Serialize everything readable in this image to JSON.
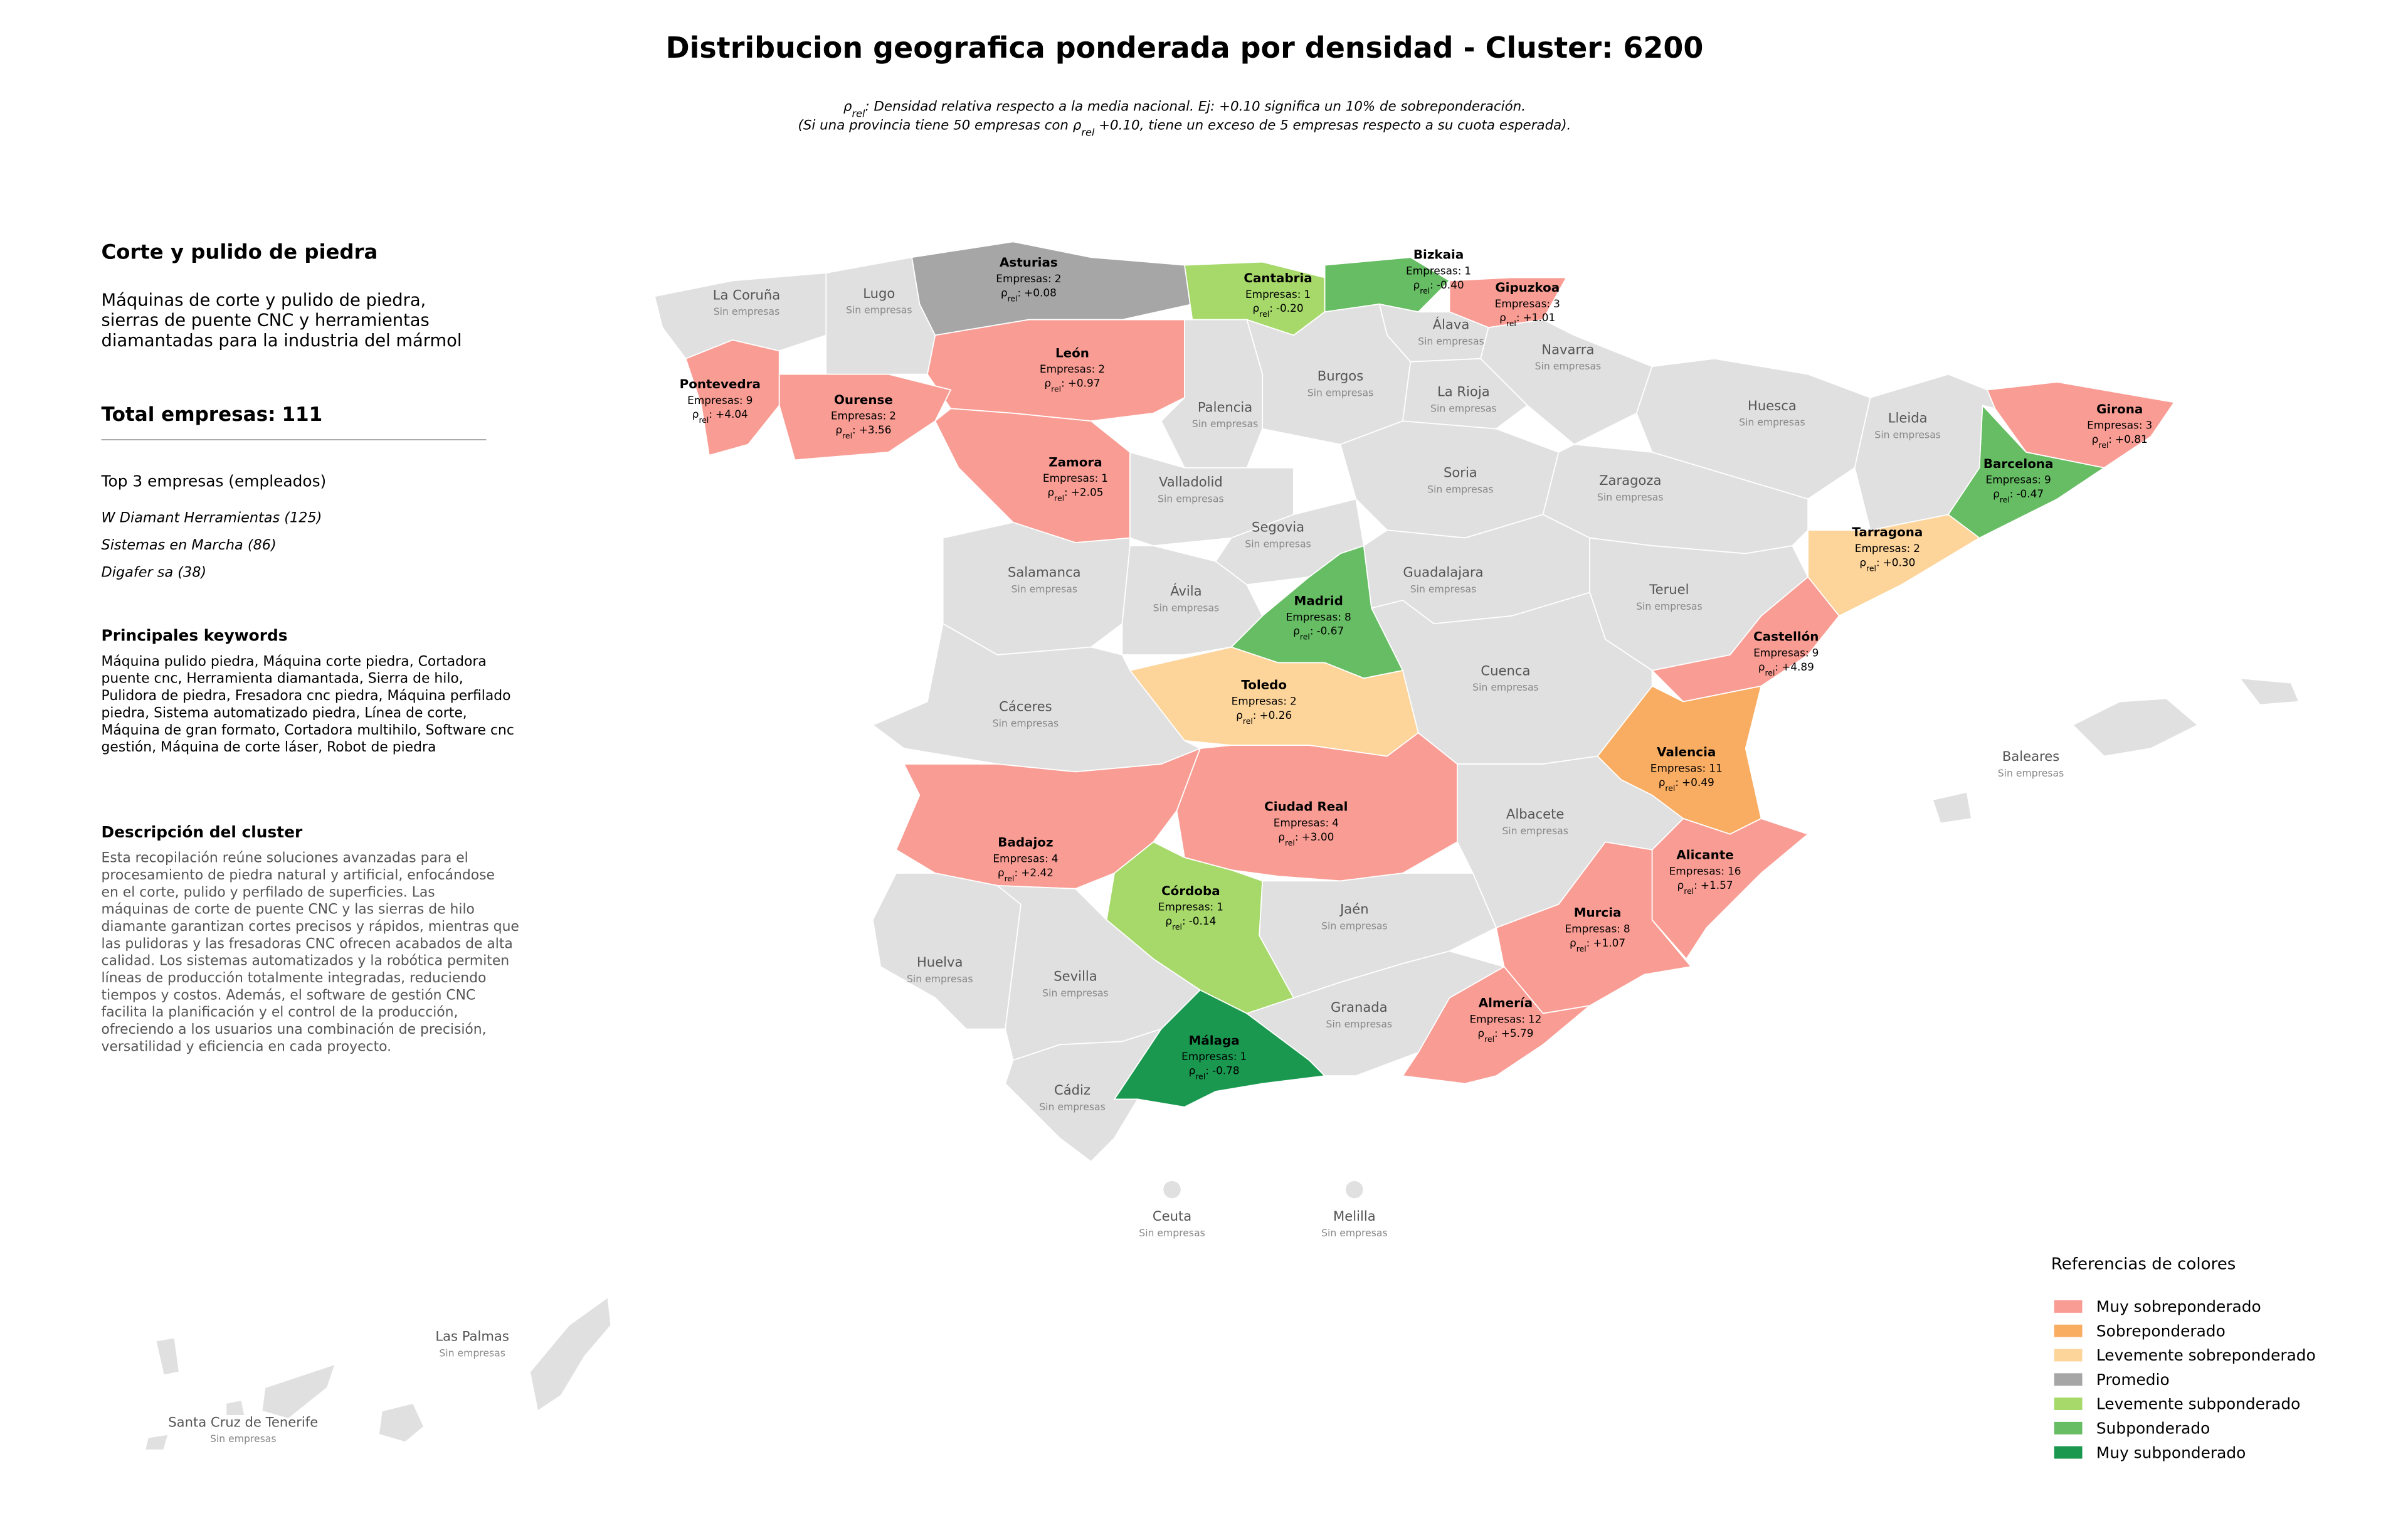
{
  "title": "Distribucion geografica ponderada por densidad - Cluster: 6200",
  "subtitle": [
    [
      "ρ",
      "rel",
      ": Densidad relativa respecto a la media nacional. Ej: +0.10 significa un 10% de sobreponderación."
    ],
    [
      "(Si una provincia tiene 50 empresas con ρ",
      "rel",
      " +0.10, tiene un exceso de 5 empresas respecto a su cuota esperada)."
    ]
  ],
  "sidebar": {
    "heading": "Corte y pulido de piedra",
    "description": [
      "Máquinas de corte y pulido de piedra,",
      "sierras de puente CNC y herramientas",
      "diamantadas para la industria del mármol"
    ],
    "total": {
      "label": "Total empresas:",
      "value": 111
    },
    "top_title": "Top 3 empresas (empleados)",
    "top_companies": [
      "W Diamant Herramientas (125)",
      "Sistemas en Marcha (86)",
      "Digafer sa (38)"
    ],
    "keywords_title": "Principales keywords",
    "keywords": [
      "Máquina pulido piedra, Máquina corte piedra, Cortadora",
      "puente cnc, Herramienta diamantada, Sierra de hilo,",
      "Pulidora de piedra, Fresadora cnc piedra, Máquina perfilado",
      "piedra, Sistema automatizado piedra, Línea de corte,",
      "Máquina de gran formato, Cortadora multihilo, Software cnc",
      "gestión, Máquina de corte láser, Robot de piedra"
    ],
    "cluster_title": "Descripción del cluster",
    "cluster_text": [
      "Esta recopilación reúne soluciones avanzadas para el",
      "procesamiento de piedra natural y artificial, enfocándose",
      "en el corte, pulido y perfilado de superficies. Las",
      "máquinas de corte de puente CNC y las sierras de hilo",
      "diamante garantizan cortes precisos y rápidos, mientras que",
      "las pulidoras y las fresadoras CNC ofrecen acabados de alta",
      "calidad. Los sistemas automatizados y la robótica permiten",
      "líneas de producción totalmente integradas, reduciendo",
      "tiempos y costos. Además, el software de gestión CNC",
      "facilita la planificación y el control de la producción,",
      "ofreciendo a los usuarios una combinación de precisión,",
      "versatilidad y eficiencia en cada proyecto."
    ]
  },
  "labels": {
    "empresas": "Empresas:",
    "rho": [
      "ρ",
      "rel",
      ":"
    ]
  },
  "no_data_color": "#e0e0e0",
  "legend": {
    "title": "Referencias de colores",
    "items": [
      {
        "name": "Muy sobreponderado",
        "color": "#f99d94"
      },
      {
        "name": "Sobreponderado",
        "color": "#f9ad62"
      },
      {
        "name": "Levemente sobreponderado",
        "color": "#fdd49a"
      },
      {
        "name": "Promedio",
        "color": "#a6a6a6"
      },
      {
        "name": "Levemente subponderado",
        "color": "#a6d96a"
      },
      {
        "name": "Subponderado",
        "color": "#66bd63"
      },
      {
        "name": "Muy subponderado",
        "color": "#1a9850"
      }
    ]
  },
  "provinces": [
    {
      "name": "Asturias",
      "empresas": 2,
      "rho": {
        "value": 0.08,
        "label": "+0.08"
      },
      "category": 3
    },
    {
      "name": "Cantabria",
      "empresas": 1,
      "rho": {
        "value": -0.2,
        "label": "-0.20"
      },
      "category": 4
    },
    {
      "name": "Bizkaia",
      "empresas": 1,
      "rho": {
        "value": -0.4,
        "label": "-0.40"
      },
      "category": 5
    },
    {
      "name": "Gipuzkoa",
      "empresas": 3,
      "rho": {
        "value": 1.01,
        "label": "+1.01"
      },
      "category": 0
    },
    {
      "name": "León",
      "empresas": 2,
      "rho": {
        "value": 0.97,
        "label": "+0.97"
      },
      "category": 0
    },
    {
      "name": "Pontevedra",
      "empresas": 9,
      "rho": {
        "value": 4.04,
        "label": "+4.04"
      },
      "category": 0
    },
    {
      "name": "Ourense",
      "empresas": 2,
      "rho": {
        "value": 3.56,
        "label": "+3.56"
      },
      "category": 0
    },
    {
      "name": "Zamora",
      "empresas": 1,
      "rho": {
        "value": 2.05,
        "label": "+2.05"
      },
      "category": 0
    },
    {
      "name": "Girona",
      "empresas": 3,
      "rho": {
        "value": 0.81,
        "label": "+0.81"
      },
      "category": 0
    },
    {
      "name": "Barcelona",
      "empresas": 9,
      "rho": {
        "value": -0.47,
        "label": "-0.47"
      },
      "category": 5
    },
    {
      "name": "Tarragona",
      "empresas": 2,
      "rho": {
        "value": 0.3,
        "label": "+0.30"
      },
      "category": 2
    },
    {
      "name": "Madrid",
      "empresas": 8,
      "rho": {
        "value": -0.67,
        "label": "-0.67"
      },
      "category": 5
    },
    {
      "name": "Castellón",
      "empresas": 9,
      "rho": {
        "value": 4.89,
        "label": "+4.89"
      },
      "category": 0
    },
    {
      "name": "Toledo",
      "empresas": 2,
      "rho": {
        "value": 0.26,
        "label": "+0.26"
      },
      "category": 2
    },
    {
      "name": "Valencia",
      "empresas": 11,
      "rho": {
        "value": 0.49,
        "label": "+0.49"
      },
      "category": 1
    },
    {
      "name": "Ciudad Real",
      "empresas": 4,
      "rho": {
        "value": 3.0,
        "label": "+3.00"
      },
      "category": 0
    },
    {
      "name": "Badajoz",
      "empresas": 4,
      "rho": {
        "value": 2.42,
        "label": "+2.42"
      },
      "category": 0
    },
    {
      "name": "Alicante",
      "empresas": 16,
      "rho": {
        "value": 1.57,
        "label": "+1.57"
      },
      "category": 0
    },
    {
      "name": "Córdoba",
      "empresas": 1,
      "rho": {
        "value": -0.14,
        "label": "-0.14"
      },
      "category": 4
    },
    {
      "name": "Murcia",
      "empresas": 8,
      "rho": {
        "value": 1.07,
        "label": "+1.07"
      },
      "category": 0
    },
    {
      "name": "Almería",
      "empresas": 12,
      "rho": {
        "value": 5.79,
        "label": "+5.79"
      },
      "category": 0
    },
    {
      "name": "Málaga",
      "empresas": 1,
      "rho": {
        "value": -0.78,
        "label": "-0.78"
      },
      "category": 6
    },
    {
      "name": "La Coruña",
      "status": "Sin empresas"
    },
    {
      "name": "Lugo",
      "status": "Sin empresas"
    },
    {
      "name": "Álava",
      "status": "Sin empresas"
    },
    {
      "name": "Navarra",
      "status": "Sin empresas"
    },
    {
      "name": "Burgos",
      "status": "Sin empresas"
    },
    {
      "name": "La Rioja",
      "status": "Sin empresas"
    },
    {
      "name": "Palencia",
      "status": "Sin empresas"
    },
    {
      "name": "Huesca",
      "status": "Sin empresas"
    },
    {
      "name": "Lleida",
      "status": "Sin empresas"
    },
    {
      "name": "Soria",
      "status": "Sin empresas"
    },
    {
      "name": "Valladolid",
      "status": "Sin empresas"
    },
    {
      "name": "Zaragoza",
      "status": "Sin empresas"
    },
    {
      "name": "Segovia",
      "status": "Sin empresas"
    },
    {
      "name": "Salamanca",
      "status": "Sin empresas"
    },
    {
      "name": "Guadalajara",
      "status": "Sin empresas"
    },
    {
      "name": "Ávila",
      "status": "Sin empresas"
    },
    {
      "name": "Teruel",
      "status": "Sin empresas"
    },
    {
      "name": "Cuenca",
      "status": "Sin empresas"
    },
    {
      "name": "Cáceres",
      "status": "Sin empresas"
    },
    {
      "name": "Baleares",
      "status": "Sin empresas"
    },
    {
      "name": "Albacete",
      "status": "Sin empresas"
    },
    {
      "name": "Jaén",
      "status": "Sin empresas"
    },
    {
      "name": "Huelva",
      "status": "Sin empresas"
    },
    {
      "name": "Sevilla",
      "status": "Sin empresas"
    },
    {
      "name": "Granada",
      "status": "Sin empresas"
    },
    {
      "name": "Cádiz",
      "status": "Sin empresas"
    },
    {
      "name": "Ceuta",
      "status": "Sin empresas"
    },
    {
      "name": "Melilla",
      "status": "Sin empresas"
    },
    {
      "name": "Las Palmas",
      "status": "Sin empresas"
    },
    {
      "name": "Santa Cruz de Tenerife",
      "status": "Sin empresas"
    }
  ]
}
